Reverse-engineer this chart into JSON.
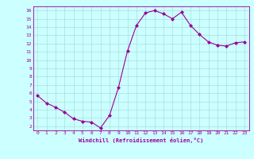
{
  "x": [
    0,
    1,
    2,
    3,
    4,
    5,
    6,
    7,
    8,
    9,
    10,
    11,
    12,
    13,
    14,
    15,
    16,
    17,
    18,
    19,
    20,
    21,
    22,
    23
  ],
  "y": [
    5.7,
    4.8,
    4.3,
    3.7,
    2.9,
    2.6,
    2.5,
    1.8,
    3.3,
    6.7,
    11.1,
    14.2,
    15.7,
    16.0,
    15.6,
    15.0,
    15.8,
    14.2,
    13.1,
    12.2,
    11.8,
    11.7,
    12.1,
    12.2
  ],
  "line_color": "#990099",
  "marker": "D",
  "marker_size": 2,
  "bg_color": "#ccffff",
  "grid_color": "#aadddd",
  "xlabel": "Windchill (Refroidissement éolien,°C)",
  "xlabel_color": "#990099",
  "tick_color": "#990099",
  "xlim": [
    -0.5,
    23.5
  ],
  "ylim": [
    1.5,
    16.5
  ],
  "yticks": [
    2,
    3,
    4,
    5,
    6,
    7,
    8,
    9,
    10,
    11,
    12,
    13,
    14,
    15,
    16
  ],
  "xticks": [
    0,
    1,
    2,
    3,
    4,
    5,
    6,
    7,
    8,
    9,
    10,
    11,
    12,
    13,
    14,
    15,
    16,
    17,
    18,
    19,
    20,
    21,
    22,
    23
  ]
}
